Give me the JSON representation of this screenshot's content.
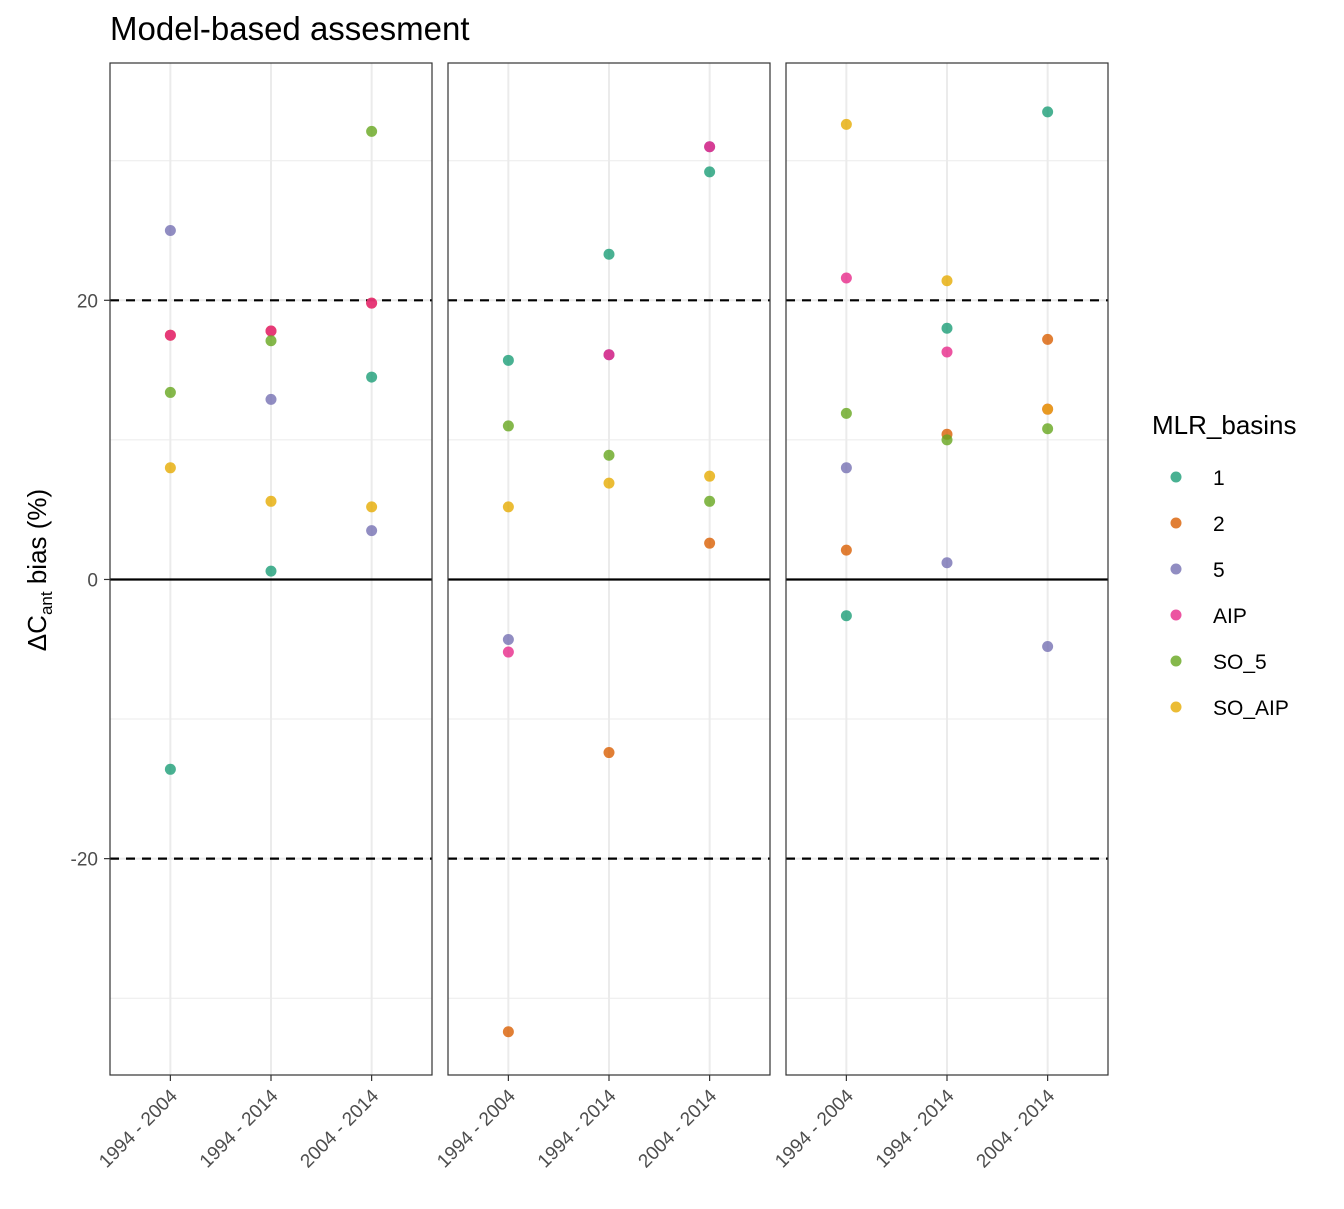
{
  "chart_data": {
    "type": "scatter",
    "title": "Model-based assesment",
    "ylabel": {
      "prefix": "ΔC",
      "subscript": "ant",
      "suffix": " bias (%)"
    },
    "ylim": [
      -35.5,
      37.0
    ],
    "yticks": [
      -20,
      0,
      20
    ],
    "hlines": {
      "solid": [
        0
      ],
      "dashed": [
        -20,
        20
      ]
    },
    "grid": true,
    "categories": [
      "1994 - 2004",
      "1994 - 2014",
      "2004 - 2014"
    ],
    "legend": {
      "title": "MLR_basins",
      "placement": "right",
      "entries": [
        {
          "name": "1",
          "color": "#1b9e77"
        },
        {
          "name": "2",
          "color": "#d95f02"
        },
        {
          "name": "5",
          "color": "#7570b3"
        },
        {
          "name": "AIP",
          "color": "#e7298a"
        },
        {
          "name": "SO_5",
          "color": "#66a61e"
        },
        {
          "name": "SO_AIP",
          "color": "#e6ab02"
        }
      ]
    },
    "panels": [
      {
        "series": [
          {
            "name": "1",
            "values": [
              -13.6,
              0.6,
              14.5
            ]
          },
          {
            "name": "2",
            "values": [
              17.5,
              17.8,
              19.8
            ]
          },
          {
            "name": "5",
            "values": [
              25.0,
              12.9,
              3.5
            ]
          },
          {
            "name": "AIP",
            "values": [
              17.5,
              17.8,
              19.8
            ]
          },
          {
            "name": "SO_5",
            "values": [
              13.4,
              17.1,
              32.1
            ]
          },
          {
            "name": "SO_AIP",
            "values": [
              8.0,
              5.6,
              5.2
            ]
          }
        ]
      },
      {
        "series": [
          {
            "name": "1",
            "values": [
              15.7,
              23.3,
              29.2
            ]
          },
          {
            "name": "2",
            "values": [
              -32.4,
              -12.4,
              2.6
            ]
          },
          {
            "name": "5",
            "values": [
              -4.3,
              16.1,
              31.0
            ]
          },
          {
            "name": "AIP",
            "values": [
              -5.2,
              16.1,
              31.0
            ]
          },
          {
            "name": "SO_5",
            "values": [
              11.0,
              8.9,
              5.6
            ]
          },
          {
            "name": "SO_AIP",
            "values": [
              5.2,
              6.9,
              7.4
            ]
          }
        ]
      },
      {
        "series": [
          {
            "name": "1",
            "values": [
              -2.6,
              18.0,
              33.5
            ]
          },
          {
            "name": "2",
            "values": [
              2.1,
              10.4,
              17.2
            ]
          },
          {
            "name": "5",
            "values": [
              8.0,
              1.2,
              -4.8
            ]
          },
          {
            "name": "AIP",
            "values": [
              21.6,
              16.3,
              12.2
            ]
          },
          {
            "name": "SO_5",
            "values": [
              11.9,
              10.0,
              10.8
            ]
          },
          {
            "name": "SO_AIP",
            "values": [
              32.6,
              21.4,
              12.2
            ]
          }
        ]
      }
    ]
  }
}
